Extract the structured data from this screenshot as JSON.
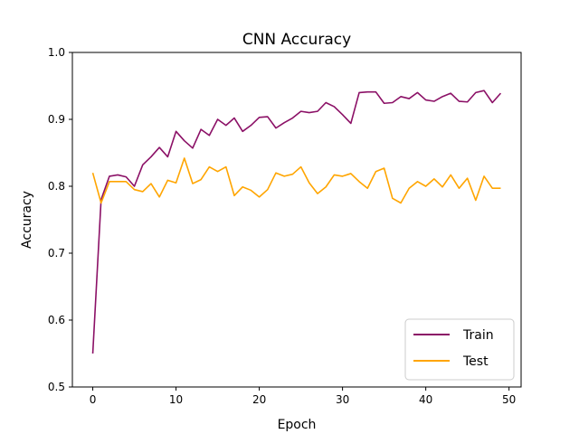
{
  "chart_data": {
    "type": "line",
    "title": "CNN Accuracy",
    "xlabel": "Epoch",
    "ylabel": "Accuracy",
    "xlim": [
      -2.45,
      51.45
    ],
    "ylim": [
      0.5,
      1.0
    ],
    "xticks": [
      0,
      10,
      20,
      30,
      40,
      50
    ],
    "yticks": [
      0.5,
      0.6,
      0.7,
      0.8,
      0.9,
      1.0
    ],
    "xtick_labels": [
      "0",
      "10",
      "20",
      "30",
      "40",
      "50"
    ],
    "ytick_labels": [
      "0.5",
      "0.6",
      "0.7",
      "0.8",
      "0.9",
      "1.0"
    ],
    "grid": false,
    "legend_position": "bottom-right",
    "x": [
      0,
      1,
      2,
      3,
      4,
      5,
      6,
      7,
      8,
      9,
      10,
      11,
      12,
      13,
      14,
      15,
      16,
      17,
      18,
      19,
      20,
      21,
      22,
      23,
      24,
      25,
      26,
      27,
      28,
      29,
      30,
      31,
      32,
      33,
      34,
      35,
      36,
      37,
      38,
      39,
      40,
      41,
      42,
      43,
      44,
      45,
      46,
      47,
      48,
      49
    ],
    "series": [
      {
        "name": "Train",
        "color": "#8b1066",
        "values": [
          0.55,
          0.78,
          0.815,
          0.817,
          0.814,
          0.8,
          0.832,
          0.844,
          0.858,
          0.844,
          0.882,
          0.868,
          0.857,
          0.885,
          0.876,
          0.9,
          0.891,
          0.902,
          0.882,
          0.891,
          0.903,
          0.904,
          0.887,
          0.895,
          0.902,
          0.912,
          0.91,
          0.912,
          0.925,
          0.919,
          0.907,
          0.894,
          0.94,
          0.941,
          0.941,
          0.924,
          0.925,
          0.934,
          0.931,
          0.94,
          0.929,
          0.927,
          0.934,
          0.939,
          0.927,
          0.926,
          0.94,
          0.943,
          0.925,
          0.939
        ]
      },
      {
        "name": "Test",
        "color": "#ffa500",
        "values": [
          0.82,
          0.775,
          0.807,
          0.807,
          0.807,
          0.795,
          0.792,
          0.804,
          0.784,
          0.809,
          0.805,
          0.842,
          0.804,
          0.81,
          0.829,
          0.822,
          0.829,
          0.786,
          0.799,
          0.794,
          0.784,
          0.795,
          0.82,
          0.815,
          0.818,
          0.829,
          0.805,
          0.789,
          0.799,
          0.817,
          0.815,
          0.819,
          0.807,
          0.797,
          0.822,
          0.827,
          0.782,
          0.775,
          0.797,
          0.807,
          0.8,
          0.811,
          0.799,
          0.817,
          0.797,
          0.812,
          0.779,
          0.815,
          0.797,
          0.797
        ]
      }
    ]
  }
}
